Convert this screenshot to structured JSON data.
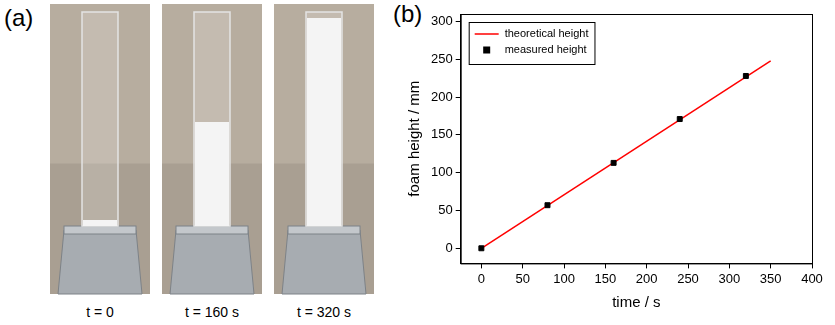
{
  "image_panel": {
    "label": "(a)",
    "captions": [
      "t = 0",
      "t = 160 s",
      "t = 320 s"
    ]
  },
  "chart_data": {
    "type": "scatter",
    "panel_label": "(b)",
    "x_label": "time / s",
    "y_label": "foam height / mm",
    "xlim": [
      -25,
      400
    ],
    "xticks": [
      0,
      50,
      100,
      150,
      200,
      250,
      300,
      350,
      400
    ],
    "ylim": [
      -20,
      310
    ],
    "yticks": [
      0,
      50,
      100,
      150,
      200,
      250,
      300
    ],
    "grid": false,
    "legend": "upper left",
    "series": [
      {
        "name": "theoretical height",
        "type": "line",
        "color": "#ff0000",
        "marker": "none",
        "line_style": "solid",
        "x": [
          0,
          350
        ],
        "values": [
          0,
          248
        ]
      },
      {
        "name": "measured height",
        "type": "scatter",
        "color": "#000000",
        "marker": "square",
        "line_style": "none",
        "x": [
          0,
          80,
          160,
          240,
          320
        ],
        "values": [
          0,
          57,
          113,
          171,
          228
        ]
      }
    ]
  }
}
